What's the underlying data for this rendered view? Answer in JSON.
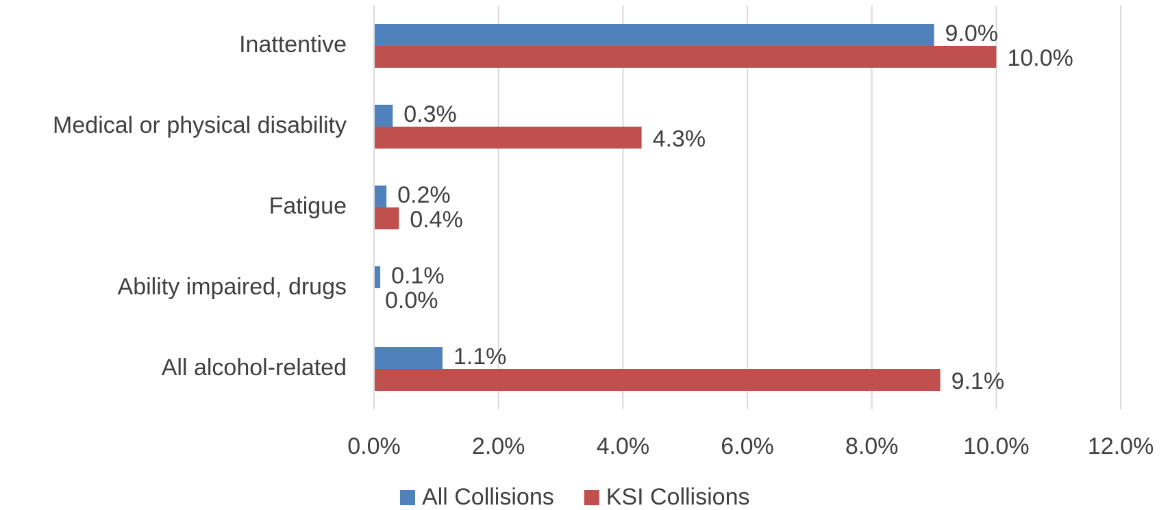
{
  "chart_data": {
    "type": "bar",
    "orientation": "horizontal",
    "categories": [
      "Inattentive",
      "Medical or physical disability",
      "Fatigue",
      "Ability impaired, drugs",
      "All alcohol-related"
    ],
    "series": [
      {
        "name": "All Collisions",
        "color": "#4f81bd",
        "values": [
          9.0,
          0.3,
          0.2,
          0.1,
          1.1
        ],
        "value_labels": [
          "9.0%",
          "0.3%",
          "0.2%",
          "0.1%",
          "1.1%"
        ]
      },
      {
        "name": "KSI Collisions",
        "color": "#c0504d",
        "values": [
          10.0,
          4.3,
          0.4,
          0.0,
          9.1
        ],
        "value_labels": [
          "10.0%",
          "4.3%",
          "0.4%",
          "0.0%",
          "9.1%"
        ]
      }
    ],
    "xlim": [
      0,
      12
    ],
    "xticks": [
      {
        "value": 0,
        "label": "0.0%"
      },
      {
        "value": 2,
        "label": "2.0%"
      },
      {
        "value": 4,
        "label": "4.0%"
      },
      {
        "value": 6,
        "label": "6.0%"
      },
      {
        "value": 8,
        "label": "8.0%"
      },
      {
        "value": 10,
        "label": "10.0%"
      },
      {
        "value": 12,
        "label": "12.0%"
      }
    ],
    "grid": true,
    "legend": "bottom"
  }
}
